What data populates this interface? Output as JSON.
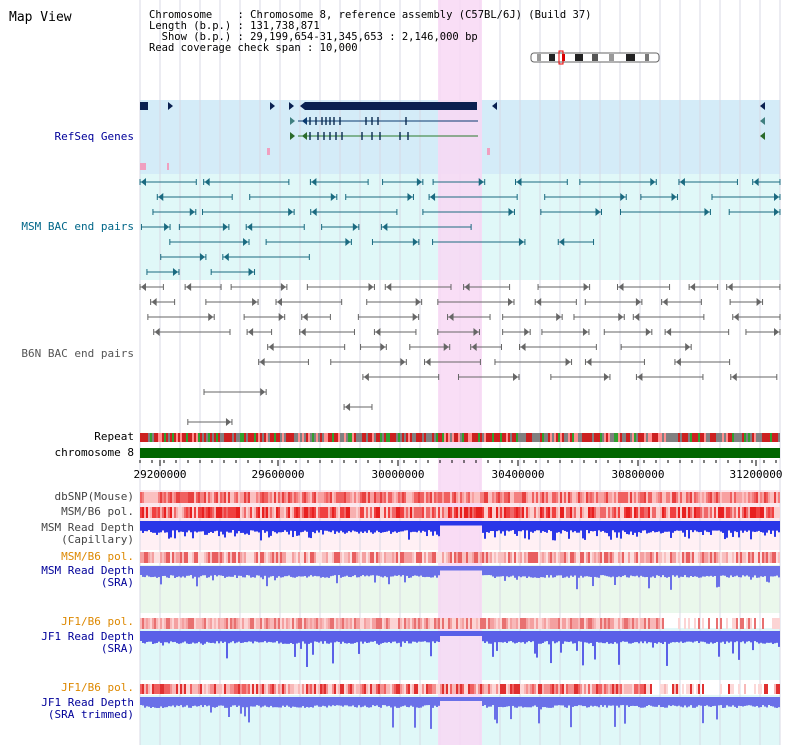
{
  "view": {
    "title": "Map View"
  },
  "info": {
    "chromosome_line": "Chromosome    : Chromosome 8, reference assembly (C57BL/6J) (Build 37)",
    "length_line": "Length (b.p.) : 131,738,871",
    "show_line": "  Show (b.p.) : 29,199,654-31,345,653 : 2,146,000 bp",
    "coverage_line": "Read coverage check span : 10,000"
  },
  "tracks": {
    "refseq": "RefSeq Genes",
    "msm_bac": "MSM BAC end pairs",
    "b6n_bac": "B6N BAC end pairs",
    "repeat": "Repeat",
    "chromosome": "chromosome 8",
    "dbsnp": "dbSNP(Mouse)",
    "msm_b6_pol_1": "MSM/B6 pol.",
    "msm_depth_cap_1": "MSM Read Depth",
    "msm_depth_cap_2": "(Capillary)",
    "msm_b6_pol_2": "MSM/B6 pol.",
    "msm_depth_sra_1": "MSM Read Depth",
    "msm_depth_sra_2": "(SRA)",
    "jf1_b6_pol_1": "JF1/B6 pol.",
    "jf1_depth_sra_1": "JF1 Read Depth",
    "jf1_depth_sra_2": "(SRA)",
    "jf1_b6_pol_2": "JF1/B6 pol.",
    "jf1_depth_trim_1": "JF1 Read Depth",
    "jf1_depth_trim_2": "(SRA trimmed)"
  },
  "axis": {
    "ticks": [
      "29200000",
      "29600000",
      "30000000",
      "30400000",
      "30800000",
      "31200000"
    ]
  },
  "colors": {
    "refseq_label": "#000099",
    "msm_bac_label": "#006688",
    "b6n_bac_label": "#555555",
    "pol_label": "#dd8800",
    "depth_label": "#000099",
    "highlight": "#f8d8f4",
    "chromosome_bar": "#006600"
  }
}
